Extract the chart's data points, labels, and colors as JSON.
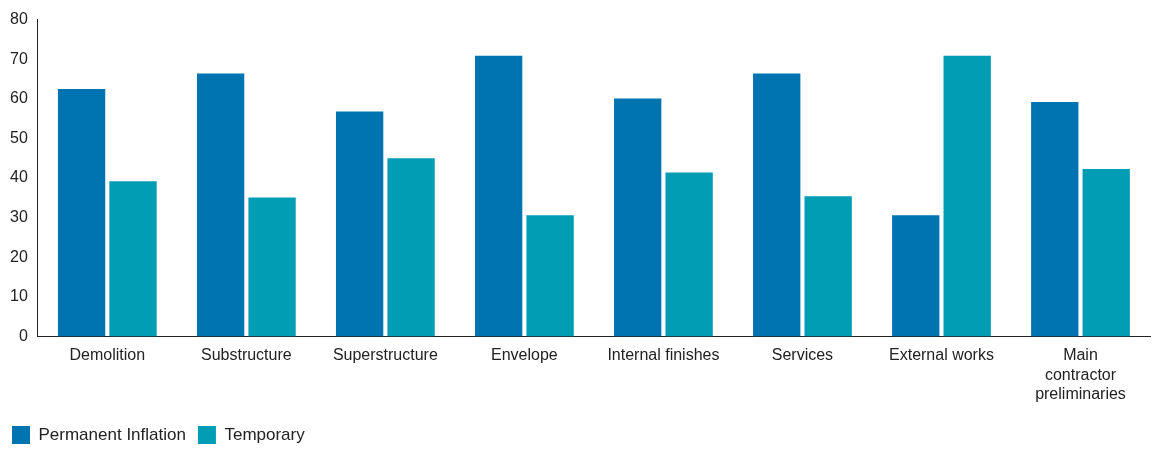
{
  "chart_data": {
    "type": "bar",
    "categories": [
      "Demolition",
      "Substructure",
      "Superstructure",
      "Envelope",
      "Internal finishes",
      "Services",
      "External works",
      "Main contractor preliminaries"
    ],
    "series": [
      {
        "name": "Permanent Inflation",
        "color": "#0074b1",
        "values": [
          62.5,
          66.4,
          56.8,
          70.9,
          60.1,
          66.4,
          30.6,
          59.2
        ]
      },
      {
        "name": "Temporary",
        "color": "#009db5",
        "values": [
          39.2,
          35.1,
          45,
          30.6,
          41.4,
          35.4,
          70.9,
          42.3
        ]
      }
    ],
    "ylim": [
      0,
      80
    ],
    "yticks": [
      0,
      10,
      20,
      30,
      40,
      50,
      60,
      70,
      80
    ],
    "grid": false,
    "legend": "bottom left"
  }
}
